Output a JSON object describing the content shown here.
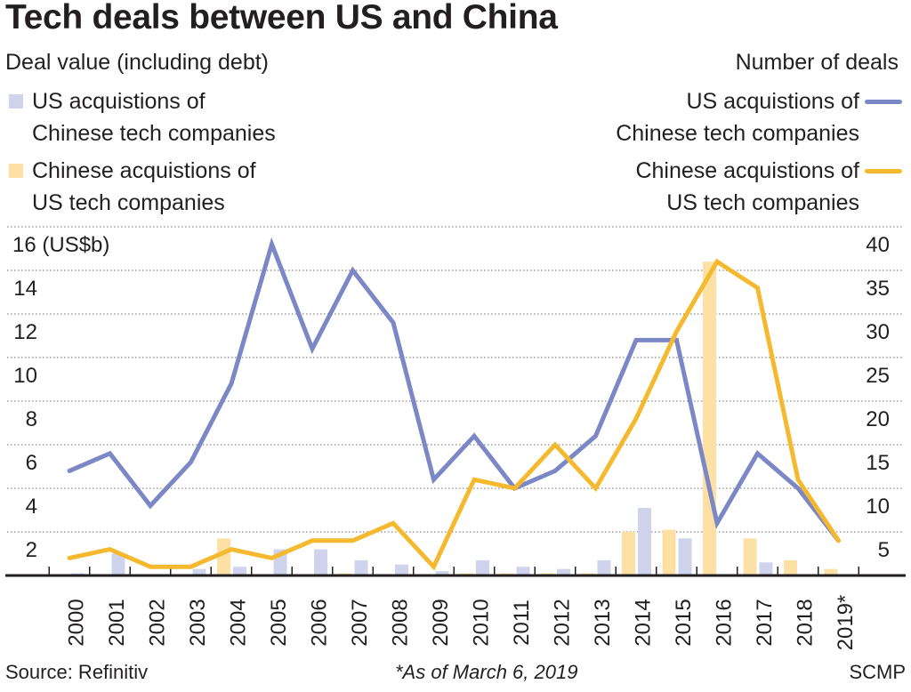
{
  "header": {
    "title": "Tech deals between US and China",
    "left_subtitle": "Deal value (including debt)",
    "right_subtitle": "Number of deals"
  },
  "legend": {
    "bars": [
      {
        "line1": "US acquistions of",
        "line2": "Chinese tech companies",
        "color": "#cfd3ec"
      },
      {
        "line1": "Chinese acquistions of",
        "line2": "US tech companies",
        "color": "#fde1a4"
      }
    ],
    "lines": [
      {
        "line1": "US acquistions of",
        "line2": "Chinese tech companies",
        "color": "#7c87c6"
      },
      {
        "line1": "Chinese acquistions of",
        "line2": "US tech companies",
        "color": "#f5b930"
      }
    ]
  },
  "footer": {
    "source": "Source: Refinitiv",
    "note": "*As of March 6, 2019",
    "credit": "SCMP"
  },
  "chart_data": {
    "type": "bar+line",
    "title": "Tech deals between US and China",
    "categories": [
      "2000",
      "2001",
      "2002",
      "2003",
      "2004",
      "2005",
      "2006",
      "2007",
      "2008",
      "2009",
      "2010",
      "2011",
      "2012",
      "2013",
      "2014",
      "2015",
      "2016",
      "2017",
      "2018",
      "2019*"
    ],
    "left_axis": {
      "label": "Deal value (including debt)",
      "unit_label": "(US$b)",
      "ylim": [
        0,
        16
      ],
      "ticks": [
        2,
        4,
        6,
        8,
        10,
        12,
        14,
        16
      ],
      "tick_labels": [
        "2",
        "4",
        "6",
        "8",
        "10",
        "12",
        "14",
        "16 (US$b)"
      ]
    },
    "right_axis": {
      "label": "Number of deals",
      "ylim": [
        0,
        40
      ],
      "ticks": [
        5,
        10,
        15,
        20,
        25,
        30,
        35,
        40
      ],
      "tick_labels": [
        "5",
        "10",
        "15",
        "20",
        "25",
        "30",
        "35",
        "40"
      ]
    },
    "grid": true,
    "bar_series": [
      {
        "name": "US acquistions of Chinese tech companies (deal value, US$b)",
        "axis": "left",
        "color": "#cfd3ec",
        "values": [
          0.1,
          1.0,
          0.0,
          0.3,
          0.4,
          1.2,
          1.2,
          0.7,
          0.5,
          0.2,
          0.7,
          0.4,
          0.3,
          0.7,
          3.1,
          1.7,
          0.0,
          0.6,
          0.05,
          0.0
        ]
      },
      {
        "name": "Chinese acquistions of US tech companies (deal value, US$b)",
        "axis": "left",
        "color": "#fde1a4",
        "values": [
          0.05,
          0.05,
          0.0,
          0.0,
          1.7,
          0.0,
          0.0,
          0.1,
          0.0,
          0.05,
          0.1,
          0.1,
          0.1,
          0.1,
          2.0,
          2.1,
          14.4,
          1.7,
          0.7,
          0.3
        ]
      }
    ],
    "line_series": [
      {
        "name": "US acquistions of Chinese tech companies (number of deals)",
        "axis": "right",
        "color": "#7c87c6",
        "values": [
          12,
          14,
          8,
          13,
          22,
          38,
          26,
          35,
          29,
          11,
          16,
          10,
          12,
          16,
          27,
          27,
          6,
          14,
          10,
          4
        ]
      },
      {
        "name": "Chinese acquistions of US tech companies (number of deals)",
        "axis": "right",
        "color": "#f5b930",
        "values": [
          2,
          3,
          1,
          1,
          3,
          2,
          4,
          4,
          6,
          1,
          11,
          10,
          15,
          10,
          18,
          28,
          36,
          33,
          11,
          4
        ]
      }
    ],
    "legend": "top-left (bars), top-right (lines)",
    "source": "Source: Refinitiv",
    "note": "*As of March 6, 2019"
  }
}
